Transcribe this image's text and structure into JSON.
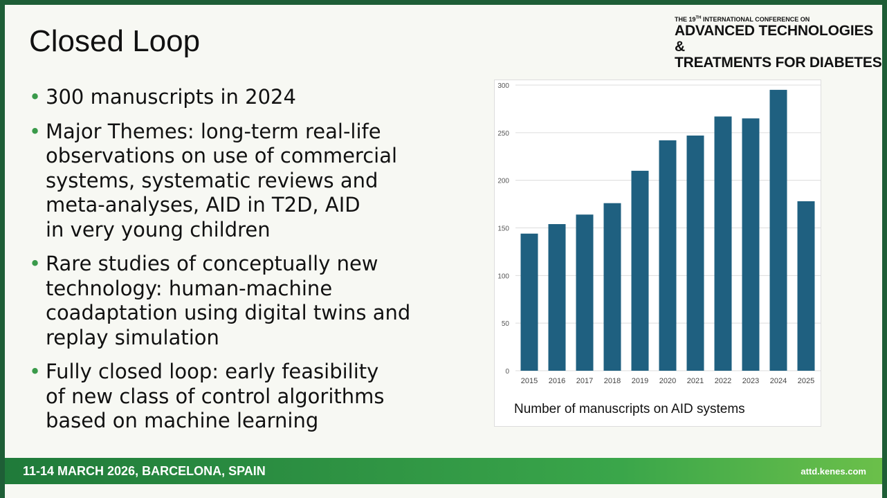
{
  "header": {
    "title": "Closed Loop"
  },
  "logo": {
    "line1_a": "THE 19",
    "line1_sup": "TH",
    "line1_b": "INTERNATIONAL CONFERENCE ON",
    "line2": "ADVANCED TECHNOLOGIES &",
    "line3": "TREATMENTS FOR DIABETES"
  },
  "bullets": [
    [
      "300 manuscripts in 2024"
    ],
    [
      "Major Themes: long-term real-life",
      "observations on use of commercial",
      "systems, systematic reviews and",
      "meta-analyses, AID in T2D, AID",
      "in very young children"
    ],
    [
      "Rare studies of conceptually new",
      "technology: human-machine",
      "coadaptation using digital twins and",
      "replay simulation"
    ],
    [
      "Fully closed loop: early feasibility",
      "of new class of control algorithms",
      "based on machine learning"
    ]
  ],
  "footer": {
    "left": "11-14 MARCH 2026, BARCELONA, SPAIN",
    "right": "attd.kenes.com"
  },
  "chart_data": {
    "type": "bar",
    "xlabel": "Number of manuscripts on AID systems",
    "categories": [
      "2015",
      "2016",
      "2017",
      "2018",
      "2019",
      "2020",
      "2021",
      "2022",
      "2023",
      "2024",
      "2025"
    ],
    "values": [
      144,
      154,
      164,
      176,
      210,
      242,
      247,
      267,
      265,
      295,
      178
    ],
    "color": "#1f6080",
    "ylim": [
      0,
      300
    ],
    "yticks": [
      0,
      50,
      100,
      150,
      200,
      250,
      300
    ],
    "grid": true
  }
}
